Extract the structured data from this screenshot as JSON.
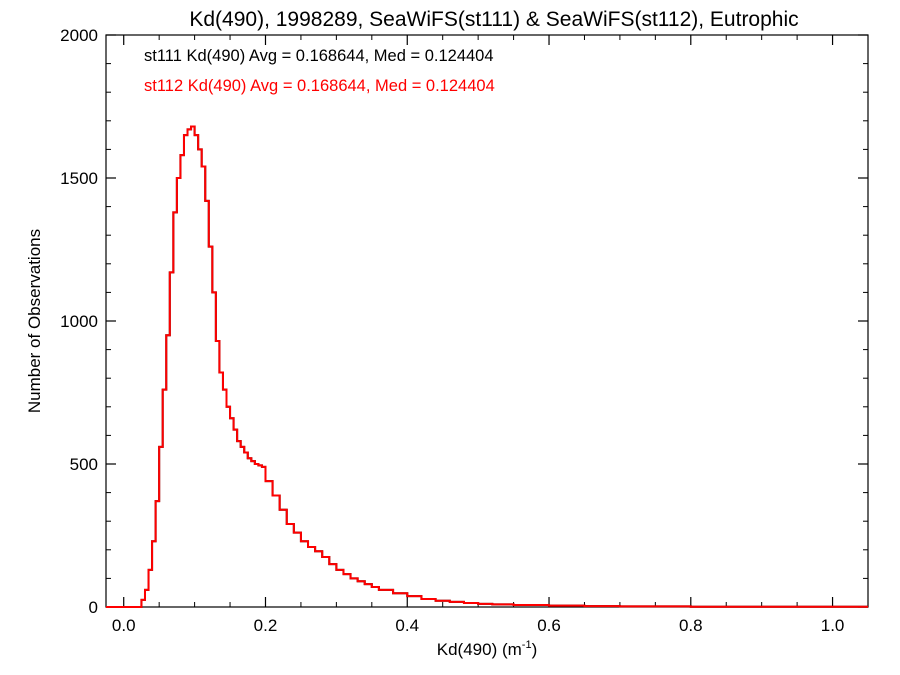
{
  "chart_data": {
    "type": "line",
    "title": "Kd(490), 1998289, SeaWiFS(st111) & SeaWiFS(st112), Eutrophic",
    "xlabel_main": "Kd(490) (m",
    "xlabel_sup": "-1",
    "xlabel_end": ")",
    "ylabel": "Number of Observations",
    "xlim": [
      -0.025,
      1.05
    ],
    "ylim": [
      0,
      2000
    ],
    "x_ticks": [
      0.0,
      0.2,
      0.4,
      0.6,
      0.8,
      1.0
    ],
    "x_tick_labels": [
      "0.0",
      "0.2",
      "0.4",
      "0.6",
      "0.8",
      "1.0"
    ],
    "y_ticks": [
      0,
      500,
      1000,
      1500,
      2000
    ],
    "y_tick_labels": [
      "0",
      "500",
      "1000",
      "1500",
      "2000"
    ],
    "grid": false,
    "colors": {
      "st111": "#000000",
      "st112": "#ff0000",
      "axes": "#000000"
    },
    "annotations": [
      {
        "text": "st111 Kd(490) Avg = 0.168644, Med = 0.124404",
        "color": "#000000"
      },
      {
        "text": "st112 Kd(490) Avg = 0.168644, Med = 0.124404",
        "color": "#ff0000"
      }
    ],
    "series": [
      {
        "color": "#000000",
        "x": [
          -0.025,
          0.02,
          0.025,
          0.03,
          0.035,
          0.04,
          0.045,
          0.05,
          0.055,
          0.06,
          0.065,
          0.07,
          0.075,
          0.08,
          0.085,
          0.09,
          0.095,
          0.1,
          0.105,
          0.11,
          0.115,
          0.12,
          0.125,
          0.13,
          0.135,
          0.14,
          0.145,
          0.15,
          0.155,
          0.16,
          0.165,
          0.17,
          0.175,
          0.18,
          0.185,
          0.19,
          0.195,
          0.2,
          0.21,
          0.22,
          0.23,
          0.24,
          0.25,
          0.26,
          0.27,
          0.28,
          0.29,
          0.3,
          0.31,
          0.32,
          0.33,
          0.34,
          0.35,
          0.36,
          0.38,
          0.4,
          0.42,
          0.44,
          0.46,
          0.48,
          0.5,
          0.52,
          0.55,
          0.6,
          0.65,
          0.7,
          0.75,
          0.8,
          0.85,
          0.9,
          0.95,
          1.0,
          1.05
        ],
        "y": [
          0,
          0,
          25,
          60,
          130,
          230,
          370,
          560,
          760,
          950,
          1170,
          1380,
          1500,
          1580,
          1650,
          1670,
          1680,
          1650,
          1600,
          1540,
          1420,
          1260,
          1100,
          930,
          820,
          760,
          700,
          660,
          620,
          580,
          560,
          540,
          520,
          510,
          500,
          495,
          490,
          440,
          390,
          340,
          290,
          260,
          230,
          210,
          195,
          175,
          150,
          130,
          115,
          100,
          90,
          80,
          70,
          60,
          48,
          38,
          28,
          22,
          18,
          14,
          11,
          9,
          7,
          5,
          3,
          2,
          2,
          1,
          1,
          1,
          1,
          1,
          1
        ]
      },
      {
        "color": "#ff0000",
        "x": [
          -0.025,
          0.02,
          0.025,
          0.03,
          0.035,
          0.04,
          0.045,
          0.05,
          0.055,
          0.06,
          0.065,
          0.07,
          0.075,
          0.08,
          0.085,
          0.09,
          0.095,
          0.1,
          0.105,
          0.11,
          0.115,
          0.12,
          0.125,
          0.13,
          0.135,
          0.14,
          0.145,
          0.15,
          0.155,
          0.16,
          0.165,
          0.17,
          0.175,
          0.18,
          0.185,
          0.19,
          0.195,
          0.2,
          0.21,
          0.22,
          0.23,
          0.24,
          0.25,
          0.26,
          0.27,
          0.28,
          0.29,
          0.3,
          0.31,
          0.32,
          0.33,
          0.34,
          0.35,
          0.36,
          0.38,
          0.4,
          0.42,
          0.44,
          0.46,
          0.48,
          0.5,
          0.52,
          0.55,
          0.6,
          0.65,
          0.7,
          0.75,
          0.8,
          0.85,
          0.9,
          0.95,
          1.0,
          1.05
        ],
        "y": [
          0,
          0,
          25,
          60,
          130,
          230,
          370,
          560,
          760,
          950,
          1170,
          1380,
          1500,
          1580,
          1650,
          1670,
          1680,
          1650,
          1600,
          1540,
          1420,
          1260,
          1100,
          930,
          820,
          760,
          700,
          660,
          620,
          580,
          560,
          540,
          520,
          510,
          500,
          495,
          490,
          440,
          390,
          340,
          290,
          260,
          230,
          210,
          195,
          175,
          150,
          130,
          115,
          100,
          90,
          80,
          70,
          60,
          48,
          38,
          28,
          22,
          18,
          14,
          11,
          9,
          7,
          5,
          3,
          2,
          2,
          1,
          1,
          1,
          1,
          1,
          1
        ]
      }
    ]
  }
}
